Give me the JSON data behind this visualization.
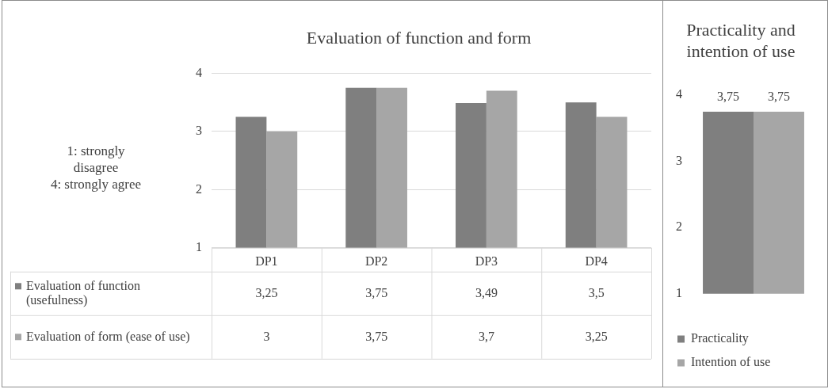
{
  "chart_data": [
    {
      "type": "bar",
      "title": "Evaluation of function and form",
      "categories": [
        "DP1",
        "DP2",
        "DP3",
        "DP4"
      ],
      "series": [
        {
          "name": "Evaluation of function (usefulness)",
          "color": "#7f7f7f",
          "values": [
            3.25,
            3.75,
            3.49,
            3.5
          ],
          "value_labels": [
            "3,25",
            "3,75",
            "3,49",
            "3,5"
          ]
        },
        {
          "name": "Evaluation of form (ease of use)",
          "color": "#a6a6a6",
          "values": [
            3,
            3.75,
            3.7,
            3.25
          ],
          "value_labels": [
            "3",
            "3,75",
            "3,7",
            "3,25"
          ]
        }
      ],
      "ylim": [
        1,
        4
      ],
      "yticks": [
        1,
        2,
        3,
        4
      ],
      "grid": "y",
      "legend": "bottom left",
      "annotations": [
        "1: strongly disagree\n4: strongly agree"
      ]
    },
    {
      "type": "bar",
      "title": "Practicality and intention of use",
      "categories": [
        null
      ],
      "series": [
        {
          "name": "Practicality",
          "color": "#7f7f7f",
          "values": [
            3.75
          ],
          "value_labels": [
            "3,75"
          ]
        },
        {
          "name": "Intention of use",
          "color": "#a6a6a6",
          "values": [
            3.75
          ],
          "value_labels": [
            "3,75"
          ]
        }
      ],
      "ylim": [
        1,
        4
      ],
      "yticks": [
        1,
        2,
        3,
        4
      ],
      "grid": false,
      "legend": "bottom"
    }
  ]
}
